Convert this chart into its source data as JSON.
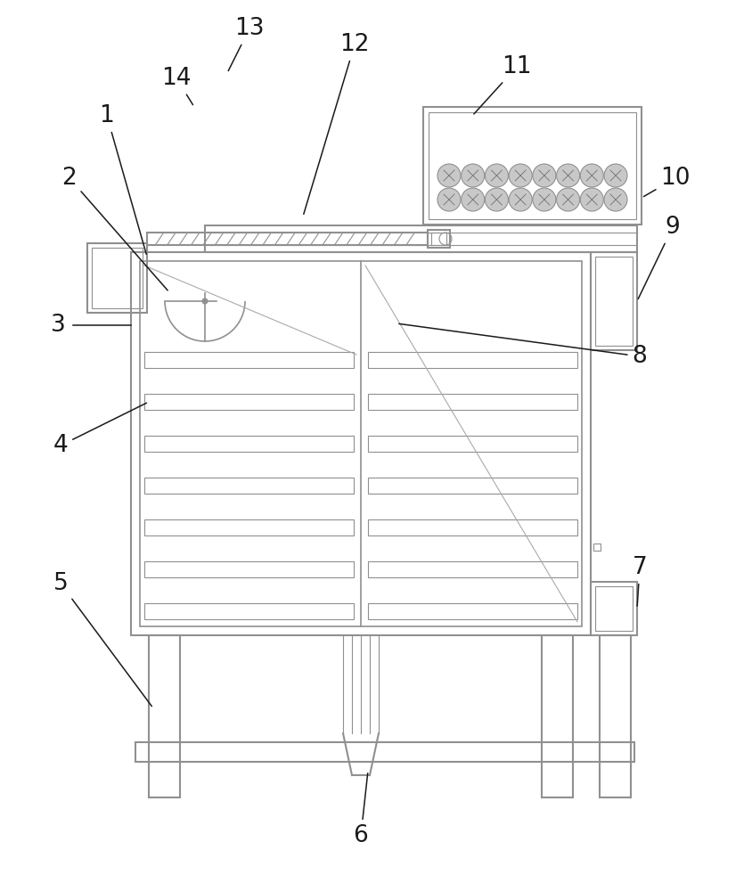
{
  "bg_color": "#ffffff",
  "lc": "#909090",
  "lc2": "#b0b0b0",
  "label_color": "#1a1a1a",
  "label_fontsize": 19,
  "figsize": [
    8.45,
    10.0
  ],
  "dpi": 100,
  "xlim": [
    0,
    845
  ],
  "ylim": [
    0,
    1000
  ]
}
